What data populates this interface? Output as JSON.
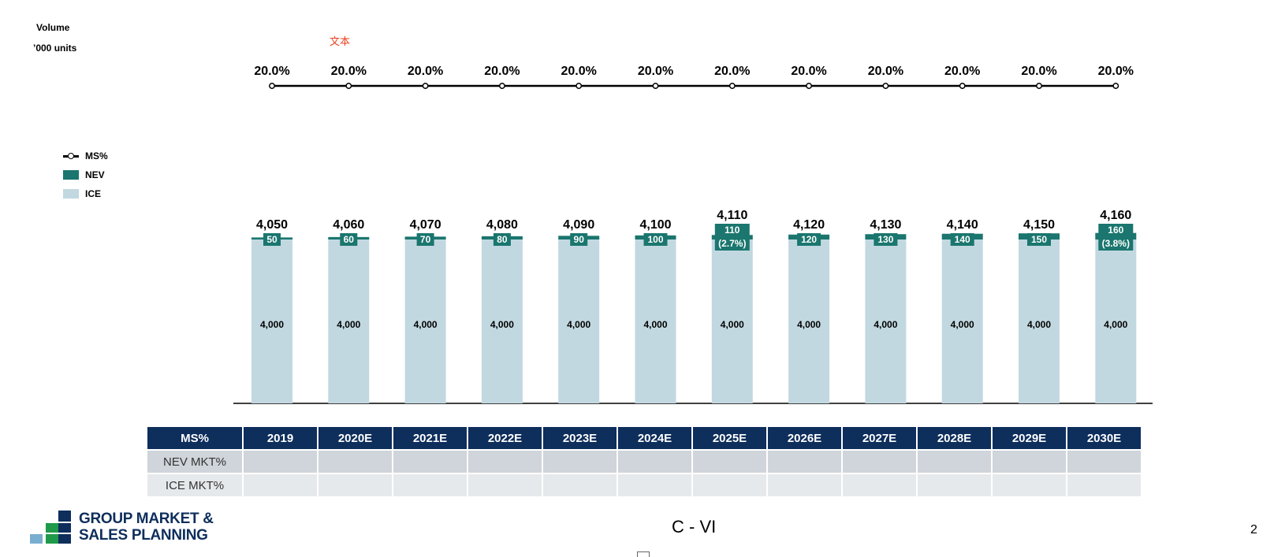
{
  "unit": {
    "title": "Volume",
    "subtitle": "’000 units"
  },
  "annotation": "文本",
  "legend": [
    {
      "label": "MS%",
      "kind": "line"
    },
    {
      "label": "NEV",
      "color": "#1a766e"
    },
    {
      "label": "ICE",
      "color": "#c2d8e0"
    }
  ],
  "colors": {
    "nev": "#1a766e",
    "ice": "#c2d8e0",
    "ms_line": "#000000",
    "header": "#0e2e5c"
  },
  "chart_data": {
    "type": "bar",
    "stacked": true,
    "categories": [
      "2019",
      "2020E",
      "2021E",
      "2022E",
      "2023E",
      "2024E",
      "2025E",
      "2026E",
      "2027E",
      "2028E",
      "2029E",
      "2030E"
    ],
    "series": [
      {
        "name": "ICE",
        "values": [
          4000,
          4000,
          4000,
          4000,
          4000,
          4000,
          4000,
          4000,
          4000,
          4000,
          4000,
          4000
        ]
      },
      {
        "name": "NEV",
        "values": [
          50,
          60,
          70,
          80,
          90,
          100,
          110,
          120,
          130,
          140,
          150,
          160
        ]
      }
    ],
    "totals": [
      "4,050",
      "4,060",
      "4,070",
      "4,080",
      "4,090",
      "4,100",
      "4,110",
      "4,120",
      "4,130",
      "4,140",
      "4,150",
      "4,160"
    ],
    "ice_labels": [
      "4,000",
      "4,000",
      "4,000",
      "4,000",
      "4,000",
      "4,000",
      "4,000",
      "4,000",
      "4,000",
      "4,000",
      "4,000",
      "4,000"
    ],
    "nev_labels": [
      "50",
      "60",
      "70",
      "80",
      "90",
      "100",
      "110",
      "120",
      "130",
      "140",
      "150",
      "160"
    ],
    "nev_share_labels": [
      "",
      "",
      "",
      "",
      "",
      "",
      "(2.7%)",
      "",
      "",
      "",
      "",
      "(3.8%)"
    ],
    "ms_line": {
      "name": "MS%",
      "values": [
        20,
        20,
        20,
        20,
        20,
        20,
        20,
        20,
        20,
        20,
        20,
        20
      ],
      "labels": [
        "20.0%",
        "20.0%",
        "20.0%",
        "20.0%",
        "20.0%",
        "20.0%",
        "20.0%",
        "20.0%",
        "20.0%",
        "20.0%",
        "20.0%",
        "20.0%"
      ]
    }
  },
  "table": {
    "header": "MS%",
    "years": [
      "2019",
      "2020E",
      "2021E",
      "2022E",
      "2023E",
      "2024E",
      "2025E",
      "2026E",
      "2027E",
      "2028E",
      "2029E",
      "2030E"
    ],
    "rows": [
      {
        "label": "NEV MKT%"
      },
      {
        "label": "ICE MKT%"
      }
    ]
  },
  "logo": {
    "line1": "GROUP MARKET &",
    "line2": "SALES PLANNING"
  },
  "footer": "C - VI",
  "page_number": "2"
}
